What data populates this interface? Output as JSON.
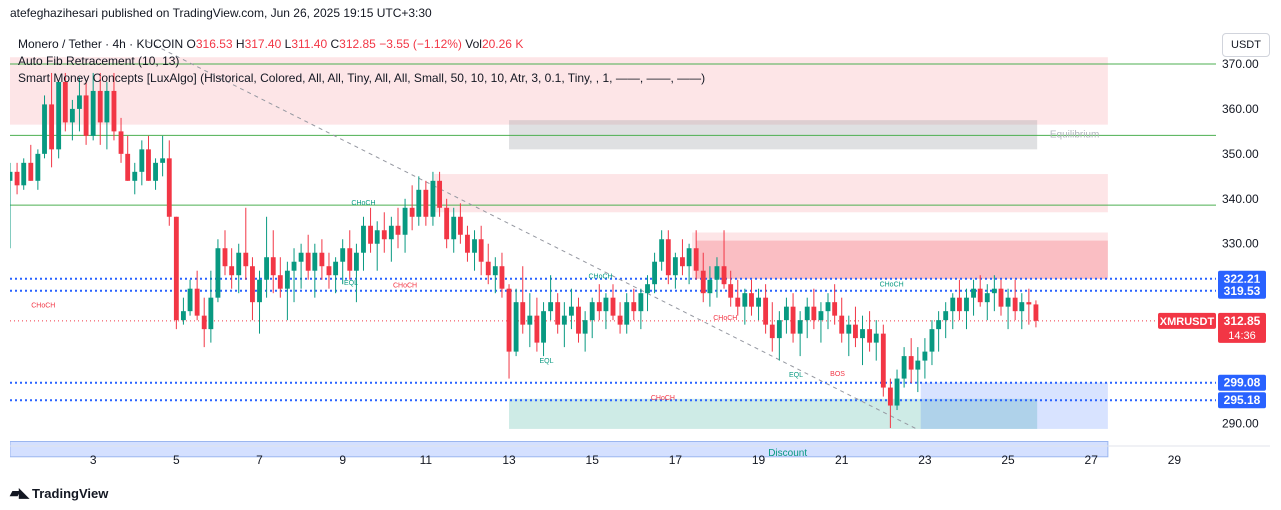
{
  "attribution": "atefeghazihesari published on TradingView.com, Jun 26, 2025 19:15 UTC+3:30",
  "legend": {
    "symbol": "Monero / Tether · 4h · KUCOIN",
    "o_label": "O",
    "o_value": "316.53",
    "h_label": "H",
    "h_value": "317.40",
    "l_label": "L",
    "l_value": "311.40",
    "c_label": "C",
    "c_value": "312.85",
    "change": "−3.55 (−1.12%)",
    "vol_label": "Vol",
    "vol_value": "20.26 K",
    "indicator1": "Auto Fib Retracement (10, 13)",
    "indicator2": "Smart Money Concepts [LuxAlgo] (Historical, Colored, All, All, Tiny, All, All, Small, 50, 10, 10, Atr, 3, 0.1, Tiny, , 1, ——, ——, ——)"
  },
  "currency_button": "USDT",
  "footer_logo": "TradingView",
  "colors": {
    "up": "#089981",
    "down": "#f23645",
    "supply_zone": "#f7c9cc",
    "demand_zone": "#c6ebe1",
    "equilibrium": "#c9cbcf",
    "discount": "#c8d8f7",
    "fib_green": "#4caf50",
    "blue_dotted": "#2962ff"
  },
  "chart_data": {
    "type": "candlestick",
    "instrument": "XMRUSDT",
    "timeframe": "4h",
    "x_ticks": [
      "3",
      "5",
      "7",
      "9",
      "11",
      "13",
      "15",
      "17",
      "19",
      "21",
      "23",
      "25",
      "27",
      "29"
    ],
    "y_ticks": [
      "370.00",
      "360.00",
      "350.00",
      "340.00",
      "330.00",
      "290.00"
    ],
    "y_range": [
      285,
      378
    ],
    "x_range_days": [
      1,
      30
    ],
    "price_labels": [
      {
        "text": "322.21",
        "value": 322.21,
        "style": "blue"
      },
      {
        "text": "319.53",
        "value": 319.53,
        "style": "blue"
      },
      {
        "text": "XMRUSDT",
        "value": 312.85,
        "style": "red-name"
      },
      {
        "text": "312.85",
        "value": 312.85,
        "style": "red"
      },
      {
        "text": "14:36",
        "value": 312.85,
        "style": "red-sub"
      },
      {
        "text": "299.08",
        "value": 299.08,
        "style": "blue"
      },
      {
        "text": "295.18",
        "value": 295.18,
        "style": "blue"
      }
    ],
    "fib_levels": [
      370.0,
      354.1,
      338.6
    ],
    "zones": [
      {
        "type": "supply",
        "x0": 1,
        "x1": 27.4,
        "y0": 356.5,
        "y1": 371.5
      },
      {
        "type": "supply",
        "x0": 11.2,
        "x1": 27.4,
        "y0": 337,
        "y1": 345.5
      },
      {
        "type": "supply",
        "x0": 17.4,
        "x1": 27.4,
        "y0": 322.2,
        "y1": 332.5
      },
      {
        "type": "supply-dark",
        "x0": 17.5,
        "x1": 27.4,
        "y0": 322.2,
        "y1": 330.7
      },
      {
        "type": "equilibrium",
        "x0": 13.0,
        "x1": 25.7,
        "y0": 351,
        "y1": 357.5
      },
      {
        "type": "demand",
        "x0": 13.0,
        "x1": 25.7,
        "y0": 288.8,
        "y1": 295.5
      },
      {
        "type": "discount",
        "x0": 22.9,
        "x1": 27.4,
        "y0": 288.8,
        "y1": 299.1
      },
      {
        "type": "discount-bar",
        "x0": 1,
        "x1": 27.4,
        "y0": 282.6,
        "y1": 286.0
      }
    ],
    "annotations": [
      {
        "text": "Equilibrium",
        "x": 26.6,
        "y": 353.6,
        "color": "#b2b5be"
      },
      {
        "text": "Discount",
        "x": 19.7,
        "y": 282.8,
        "color": "#089981"
      },
      {
        "text": "CHoCH",
        "x": 9.5,
        "y": 338.6,
        "color": "#089981"
      },
      {
        "text": "CHoCH",
        "x": 1.8,
        "y": 315.8,
        "color": "#f23645"
      },
      {
        "text": "CHoCH",
        "x": 10.5,
        "y": 320.3,
        "color": "#f23645"
      },
      {
        "text": "CHoCH",
        "x": 15.2,
        "y": 322.3,
        "color": "#089981"
      },
      {
        "text": "CHoCH",
        "x": 18.2,
        "y": 313.0,
        "color": "#f23645"
      },
      {
        "text": "CHoCH",
        "x": 22.2,
        "y": 320.5,
        "color": "#089981"
      },
      {
        "text": "CHoCH",
        "x": 16.7,
        "y": 295.2,
        "color": "#f23645"
      },
      {
        "text": "EQL",
        "x": 9.2,
        "y": 320.8,
        "color": "#089981"
      },
      {
        "text": "EQL",
        "x": 13.9,
        "y": 303.5,
        "color": "#089981"
      },
      {
        "text": "EQL",
        "x": 19.9,
        "y": 300.3,
        "color": "#089981"
      },
      {
        "text": "BOS",
        "x": 20.9,
        "y": 300.6,
        "color": "#f23645"
      }
    ],
    "candles": [
      [
        1.0,
        344,
        348,
        329,
        346
      ],
      [
        1.17,
        346,
        348,
        341,
        343
      ],
      [
        1.33,
        343,
        349,
        342,
        348
      ],
      [
        1.5,
        348,
        352,
        344,
        344
      ],
      [
        1.67,
        344,
        351,
        342,
        350
      ],
      [
        1.83,
        350,
        363,
        349,
        361
      ],
      [
        2.0,
        361,
        368,
        347,
        351
      ],
      [
        2.17,
        351,
        366,
        349,
        366
      ],
      [
        2.33,
        366,
        368,
        355,
        357
      ],
      [
        2.5,
        357,
        362,
        353,
        360
      ],
      [
        2.67,
        360,
        367,
        355,
        363
      ],
      [
        2.83,
        363,
        366,
        352,
        354
      ],
      [
        3.0,
        354,
        368,
        353,
        364
      ],
      [
        3.17,
        364,
        368,
        352,
        357
      ],
      [
        3.33,
        357,
        366,
        351,
        364
      ],
      [
        3.5,
        364,
        368,
        353,
        355
      ],
      [
        3.67,
        355,
        358,
        348,
        350
      ],
      [
        3.83,
        350,
        354,
        344,
        344
      ],
      [
        4.0,
        344,
        348,
        341,
        346
      ],
      [
        4.17,
        346,
        353,
        343,
        351
      ],
      [
        4.33,
        351,
        354,
        344,
        344
      ],
      [
        4.5,
        344,
        349,
        342,
        348
      ],
      [
        4.67,
        348,
        354,
        345,
        349
      ],
      [
        4.83,
        349,
        353,
        334,
        336
      ],
      [
        5.0,
        336,
        336,
        311,
        313
      ],
      [
        5.17,
        313,
        318,
        312,
        315
      ],
      [
        5.33,
        315,
        322,
        314,
        320
      ],
      [
        5.5,
        320,
        324,
        313,
        314
      ],
      [
        5.67,
        314,
        318,
        307,
        311
      ],
      [
        5.83,
        311,
        324,
        308,
        318
      ],
      [
        6.0,
        318,
        331,
        317,
        329
      ],
      [
        6.17,
        329,
        333,
        323,
        325
      ],
      [
        6.33,
        325,
        329,
        320,
        323
      ],
      [
        6.5,
        323,
        330,
        319,
        328
      ],
      [
        6.67,
        328,
        338,
        322,
        325
      ],
      [
        6.83,
        325,
        327,
        313,
        317
      ],
      [
        7.0,
        317,
        324,
        310,
        322
      ],
      [
        7.17,
        322,
        336,
        318,
        327
      ],
      [
        7.33,
        327,
        333,
        319,
        323
      ],
      [
        7.5,
        323,
        327,
        318,
        320
      ],
      [
        7.67,
        320,
        326,
        313,
        324
      ],
      [
        7.83,
        324,
        329,
        317,
        326
      ],
      [
        8.0,
        326,
        330,
        320,
        328
      ],
      [
        8.17,
        328,
        332,
        322,
        324
      ],
      [
        8.33,
        324,
        330,
        318,
        328
      ],
      [
        8.5,
        328,
        331,
        322,
        325
      ],
      [
        8.67,
        325,
        328,
        320,
        323
      ],
      [
        8.83,
        323,
        327,
        319,
        326
      ],
      [
        9.0,
        326,
        331,
        321,
        329
      ],
      [
        9.17,
        329,
        333,
        322,
        324
      ],
      [
        9.33,
        324,
        330,
        317,
        328
      ],
      [
        9.5,
        328,
        336,
        324,
        334
      ],
      [
        9.67,
        334,
        338,
        328,
        330
      ],
      [
        9.83,
        330,
        335,
        324,
        333
      ],
      [
        10.0,
        333,
        337,
        328,
        331
      ],
      [
        10.17,
        331,
        336,
        326,
        334
      ],
      [
        10.33,
        334,
        338,
        329,
        332
      ],
      [
        10.5,
        332,
        340,
        328,
        338
      ],
      [
        10.67,
        338,
        343,
        333,
        336
      ],
      [
        10.83,
        336,
        345,
        334,
        342
      ],
      [
        11.0,
        342,
        344,
        334,
        336
      ],
      [
        11.17,
        336,
        346,
        334,
        344
      ],
      [
        11.33,
        344,
        346,
        336,
        338
      ],
      [
        11.5,
        338,
        340,
        329,
        331
      ],
      [
        11.67,
        331,
        338,
        328,
        336
      ],
      [
        11.83,
        336,
        339,
        330,
        332
      ],
      [
        12.0,
        332,
        334,
        326,
        328
      ],
      [
        12.17,
        328,
        333,
        324,
        331
      ],
      [
        12.33,
        331,
        334,
        323,
        326
      ],
      [
        12.5,
        326,
        330,
        321,
        323
      ],
      [
        12.67,
        323,
        327,
        319,
        325
      ],
      [
        12.83,
        325,
        328,
        318,
        320
      ],
      [
        13.0,
        320,
        321,
        300,
        306
      ],
      [
        13.17,
        306,
        320,
        305,
        317
      ],
      [
        13.33,
        317,
        325,
        310,
        312
      ],
      [
        13.5,
        312,
        319,
        307,
        314
      ],
      [
        13.67,
        314,
        318,
        306,
        308
      ],
      [
        13.83,
        308,
        317,
        305,
        315
      ],
      [
        14.0,
        315,
        323,
        313,
        317
      ],
      [
        14.17,
        317,
        319,
        310,
        312
      ],
      [
        14.33,
        312,
        317,
        307,
        314
      ],
      [
        14.5,
        314,
        320,
        311,
        316
      ],
      [
        14.67,
        316,
        318,
        308,
        310
      ],
      [
        14.83,
        310,
        315,
        306,
        313
      ],
      [
        15.0,
        313,
        318,
        309,
        317
      ],
      [
        15.17,
        317,
        321,
        313,
        315
      ],
      [
        15.33,
        315,
        319,
        311,
        318
      ],
      [
        15.5,
        318,
        321,
        313,
        314
      ],
      [
        15.67,
        314,
        317,
        310,
        312
      ],
      [
        15.83,
        312,
        319,
        310,
        317
      ],
      [
        16.0,
        317,
        320,
        313,
        315
      ],
      [
        16.17,
        315,
        320,
        311,
        319
      ],
      [
        16.33,
        319,
        323,
        315,
        321
      ],
      [
        16.5,
        321,
        328,
        319,
        326
      ],
      [
        16.67,
        326,
        333,
        324,
        331
      ],
      [
        16.83,
        331,
        333,
        321,
        323
      ],
      [
        17.0,
        323,
        328,
        320,
        327
      ],
      [
        17.17,
        327,
        331,
        323,
        325
      ],
      [
        17.33,
        325,
        330,
        321,
        329
      ],
      [
        17.5,
        329,
        333,
        322,
        324
      ],
      [
        17.67,
        324,
        328,
        317,
        319
      ],
      [
        17.83,
        319,
        325,
        316,
        322
      ],
      [
        18.0,
        322,
        327,
        318,
        325
      ],
      [
        18.17,
        325,
        333,
        320,
        321
      ],
      [
        18.33,
        321,
        324,
        316,
        318
      ],
      [
        18.5,
        318,
        322,
        314,
        316
      ],
      [
        18.67,
        316,
        320,
        312,
        319
      ],
      [
        18.83,
        319,
        322,
        314,
        316
      ],
      [
        19.0,
        316,
        320,
        313,
        318
      ],
      [
        19.17,
        318,
        321,
        310,
        312
      ],
      [
        19.33,
        312,
        317,
        306,
        309
      ],
      [
        19.5,
        309,
        315,
        304,
        313
      ],
      [
        19.67,
        313,
        318,
        310,
        316
      ],
      [
        19.83,
        316,
        319,
        308,
        310
      ],
      [
        20.0,
        310,
        315,
        305,
        313
      ],
      [
        20.17,
        313,
        318,
        309,
        316
      ],
      [
        20.33,
        316,
        320,
        311,
        313
      ],
      [
        20.5,
        313,
        317,
        308,
        315
      ],
      [
        20.67,
        315,
        319,
        311,
        317
      ],
      [
        20.83,
        317,
        321,
        312,
        314
      ],
      [
        21.0,
        314,
        318,
        308,
        310
      ],
      [
        21.17,
        310,
        314,
        305,
        312
      ],
      [
        21.33,
        312,
        316,
        307,
        309
      ],
      [
        21.5,
        309,
        314,
        303,
        311
      ],
      [
        21.67,
        311,
        315,
        306,
        308
      ],
      [
        21.83,
        308,
        313,
        304,
        310
      ],
      [
        22.0,
        310,
        312,
        296,
        298
      ],
      [
        22.17,
        298,
        300,
        289,
        294
      ],
      [
        22.33,
        294,
        302,
        293,
        300
      ],
      [
        22.5,
        300,
        307,
        298,
        305
      ],
      [
        22.67,
        305,
        309,
        299,
        302
      ],
      [
        22.83,
        302,
        307,
        297,
        304
      ],
      [
        23.0,
        304,
        309,
        300,
        306
      ],
      [
        23.17,
        306,
        313,
        303,
        311
      ],
      [
        23.33,
        311,
        315,
        306,
        313
      ],
      [
        23.5,
        313,
        317,
        309,
        315
      ],
      [
        23.67,
        315,
        319,
        311,
        318
      ],
      [
        23.83,
        318,
        322,
        313,
        315
      ],
      [
        24.0,
        315,
        320,
        311,
        318
      ],
      [
        24.17,
        318,
        322,
        314,
        320
      ],
      [
        24.33,
        320,
        323,
        316,
        317
      ],
      [
        24.5,
        317,
        321,
        313,
        319
      ],
      [
        24.67,
        319,
        323,
        315,
        320
      ],
      [
        24.83,
        320,
        322,
        314,
        316
      ],
      [
        25.0,
        316,
        320,
        311,
        318
      ],
      [
        25.17,
        318,
        322,
        313,
        315
      ],
      [
        25.33,
        315,
        319,
        311,
        317
      ],
      [
        25.5,
        317,
        320,
        312,
        316.5
      ],
      [
        25.67,
        316.5,
        317.4,
        311.4,
        312.85
      ]
    ]
  }
}
